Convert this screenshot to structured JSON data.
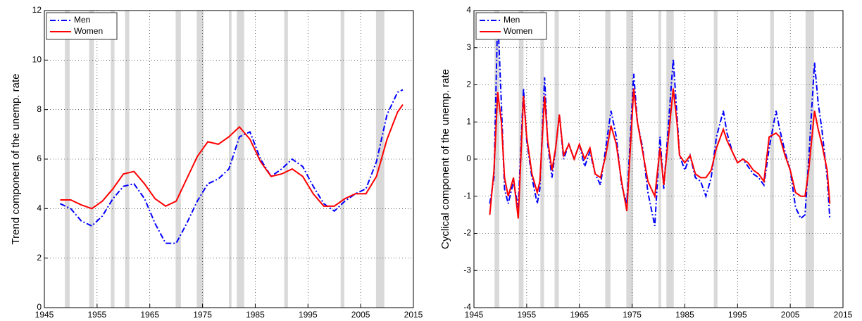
{
  "chart_data": [
    {
      "type": "line",
      "ylabel": "Trend component of the unemp. rate",
      "x": [
        1948,
        1950,
        1952,
        1954,
        1956,
        1958,
        1960,
        1962,
        1964,
        1966,
        1968,
        1970,
        1972,
        1974,
        1976,
        1978,
        1980,
        1982,
        1984,
        1986,
        1988,
        1990,
        1992,
        1994,
        1996,
        1998,
        2000,
        2002,
        2004,
        2006,
        2008,
        2010,
        2012,
        2013
      ],
      "series": [
        {
          "name": "Men",
          "color": "#0000ff",
          "linestyle": "dashdot",
          "values": [
            4.2,
            4.0,
            3.5,
            3.3,
            3.7,
            4.4,
            4.9,
            5.0,
            4.4,
            3.4,
            2.6,
            2.6,
            3.4,
            4.3,
            5.0,
            5.2,
            5.6,
            6.9,
            7.1,
            6.0,
            5.3,
            5.6,
            6.0,
            5.7,
            4.9,
            4.2,
            3.9,
            4.3,
            4.6,
            4.8,
            5.9,
            7.8,
            8.7,
            8.8
          ]
        },
        {
          "name": "Women",
          "color": "#ff0000",
          "linestyle": "solid",
          "values": [
            4.35,
            4.35,
            4.15,
            4.0,
            4.3,
            4.8,
            5.4,
            5.5,
            5.0,
            4.4,
            4.1,
            4.3,
            5.2,
            6.1,
            6.7,
            6.6,
            6.9,
            7.3,
            6.8,
            5.9,
            5.3,
            5.4,
            5.6,
            5.3,
            4.6,
            4.1,
            4.1,
            4.4,
            4.6,
            4.6,
            5.3,
            6.8,
            7.9,
            8.2
          ]
        }
      ],
      "shaded_periods": [
        [
          1948.9,
          1949.8
        ],
        [
          1953.5,
          1954.4
        ],
        [
          1957.6,
          1958.3
        ],
        [
          1960.3,
          1961.1
        ],
        [
          1969.9,
          1970.9
        ],
        [
          1973.9,
          1975.2
        ],
        [
          1980.0,
          1980.5
        ],
        [
          1981.5,
          1982.9
        ],
        [
          1990.5,
          1991.2
        ],
        [
          2001.2,
          2001.9
        ],
        [
          2007.9,
          2009.5
        ]
      ],
      "shade_color": "#d9d9d9",
      "xlim": [
        1945,
        2015
      ],
      "xticks": [
        1945,
        1955,
        1965,
        1975,
        1985,
        1995,
        2005,
        2015
      ],
      "ylim": [
        0,
        12
      ],
      "yticks": [
        0,
        2,
        4,
        6,
        8,
        10,
        12
      ],
      "grid": true,
      "legend": "upper left"
    },
    {
      "type": "line",
      "ylabel": "Cyclical component of the unemp. rate",
      "x": [
        1948.0,
        1948.8,
        1949.5,
        1950.2,
        1950.8,
        1951.5,
        1952.5,
        1953.4,
        1954.4,
        1955.0,
        1956,
        1957,
        1957.5,
        1958.4,
        1959,
        1959.8,
        1960.5,
        1961.2,
        1962,
        1963,
        1964,
        1965,
        1966,
        1967,
        1968,
        1969,
        1970,
        1971,
        1972,
        1973,
        1974,
        1975.3,
        1976,
        1977,
        1978,
        1979.3,
        1980.3,
        1981,
        1982.8,
        1983.5,
        1984,
        1985,
        1986,
        1987,
        1988,
        1989,
        1990,
        1991,
        1992.3,
        1993,
        1994,
        1995,
        1996,
        1997,
        1998,
        1999,
        2000,
        2001,
        2002.3,
        2003,
        2004,
        2005,
        2006,
        2007,
        2007.8,
        2008.5,
        2009.6,
        2010.3,
        2011,
        2012,
        2012.5
      ],
      "series": [
        {
          "name": "Men",
          "color": "#0000ff",
          "linestyle": "dashdot",
          "values": [
            -1.2,
            -0.5,
            3.9,
            1.5,
            -0.8,
            -1.2,
            -0.6,
            -1.3,
            1.9,
            0.5,
            -0.5,
            -1.2,
            -0.8,
            2.2,
            0.4,
            -0.5,
            0.3,
            1.2,
            0.0,
            0.4,
            0.0,
            0.4,
            -0.2,
            0.2,
            -0.4,
            -0.7,
            0.3,
            1.3,
            0.6,
            -0.7,
            -1.2,
            2.3,
            1.0,
            0.3,
            -0.9,
            -1.8,
            0.6,
            -0.8,
            2.7,
            1.2,
            0.1,
            -0.3,
            0.1,
            -0.5,
            -0.6,
            -1.0,
            -0.5,
            0.6,
            1.3,
            0.7,
            0.2,
            -0.1,
            0.0,
            -0.2,
            -0.4,
            -0.5,
            -0.7,
            0.3,
            1.3,
            0.8,
            0.2,
            -0.3,
            -1.3,
            -1.6,
            -1.5,
            0.0,
            2.6,
            1.5,
            0.8,
            -0.5,
            -1.6
          ]
        },
        {
          "name": "Women",
          "color": "#ff0000",
          "linestyle": "solid",
          "values": [
            -1.5,
            -0.3,
            1.8,
            1.0,
            -0.5,
            -1.0,
            -0.5,
            -1.6,
            1.7,
            0.6,
            -0.4,
            -0.9,
            -0.6,
            1.7,
            0.5,
            -0.3,
            0.3,
            1.2,
            0.1,
            0.4,
            0.0,
            0.4,
            0.0,
            0.3,
            -0.4,
            -0.5,
            0.1,
            0.9,
            0.4,
            -0.6,
            -1.4,
            1.9,
            1.0,
            0.2,
            -0.6,
            -1.0,
            0.3,
            -0.7,
            1.9,
            1.0,
            0.1,
            -0.1,
            0.1,
            -0.4,
            -0.5,
            -0.5,
            -0.3,
            0.3,
            0.8,
            0.5,
            0.2,
            -0.1,
            0.0,
            -0.1,
            -0.3,
            -0.4,
            -0.6,
            0.6,
            0.7,
            0.6,
            0.1,
            -0.3,
            -0.9,
            -1.0,
            -1.0,
            -0.3,
            1.3,
            0.8,
            0.4,
            -0.3,
            -1.2
          ]
        }
      ],
      "shaded_periods": [
        [
          1948.9,
          1949.8
        ],
        [
          1953.5,
          1954.4
        ],
        [
          1957.6,
          1958.3
        ],
        [
          1960.3,
          1961.1
        ],
        [
          1969.9,
          1970.9
        ],
        [
          1973.9,
          1975.2
        ],
        [
          1980.0,
          1980.5
        ],
        [
          1981.5,
          1982.9
        ],
        [
          1990.5,
          1991.2
        ],
        [
          2001.2,
          2001.9
        ],
        [
          2007.9,
          2009.5
        ]
      ],
      "shade_color": "#d9d9d9",
      "xlim": [
        1945,
        2015
      ],
      "xticks": [
        1945,
        1955,
        1965,
        1975,
        1985,
        1995,
        2005,
        2015
      ],
      "ylim": [
        -4,
        4
      ],
      "yticks": [
        -4,
        -3,
        -2,
        -1,
        0,
        1,
        2,
        3,
        4
      ],
      "grid": true,
      "legend": "upper left"
    }
  ]
}
